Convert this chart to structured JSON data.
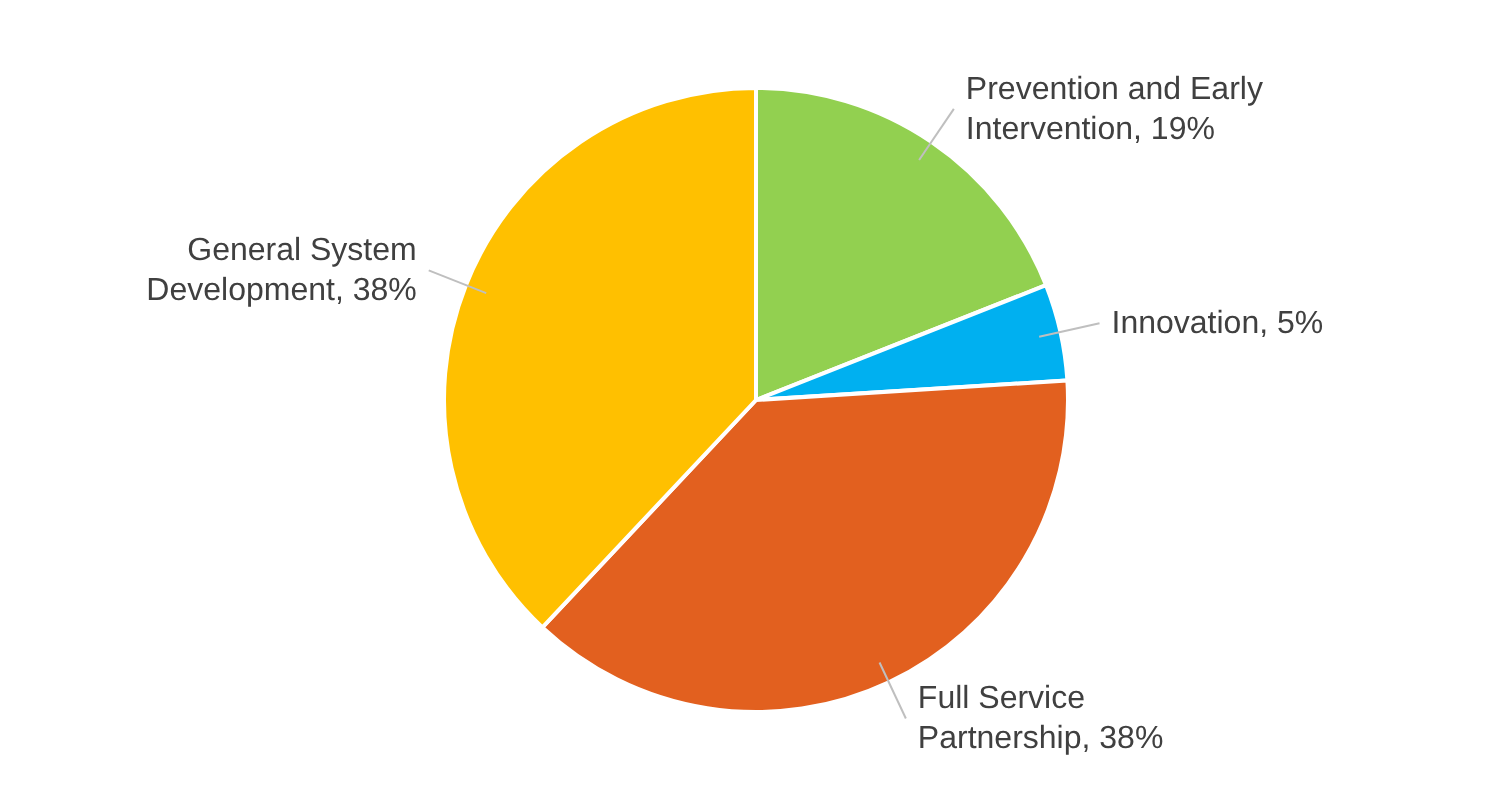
{
  "chart_data": {
    "type": "pie",
    "categories": [
      "Prevention and Early Intervention",
      "Innovation",
      "Full Service Partnership",
      "General System Development"
    ],
    "values": [
      19,
      5,
      38,
      38
    ],
    "value_labels": [
      "19%",
      "5%",
      "38%",
      "38%"
    ],
    "colors": [
      "#92d050",
      "#00b0f0",
      "#e2601f",
      "#ffc000"
    ]
  }
}
